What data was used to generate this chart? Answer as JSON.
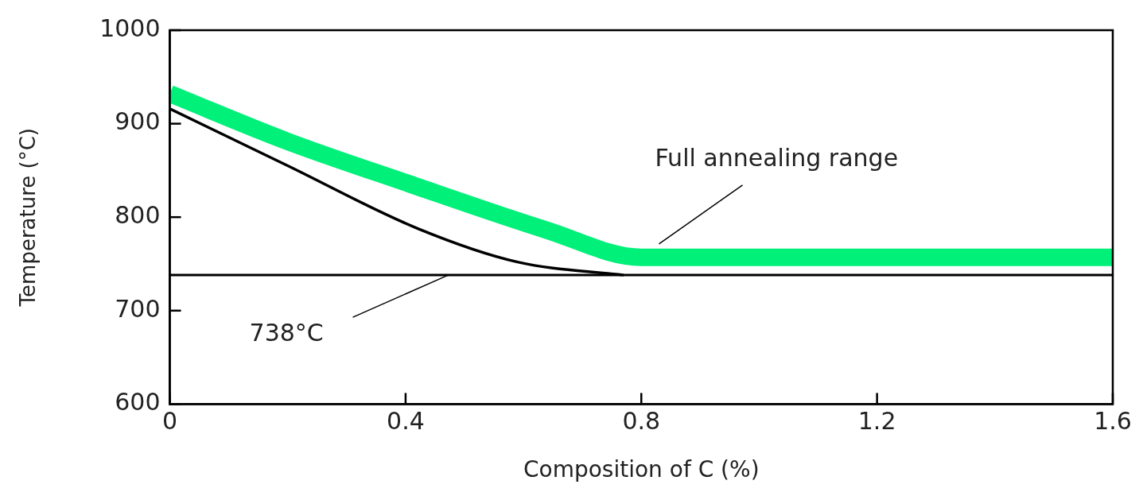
{
  "chart_data": {
    "type": "line",
    "xlabel": "Composition of C (%)",
    "ylabel": "Temperature (°C)",
    "xlim": [
      0,
      1.6
    ],
    "xticks": [
      0,
      0.4,
      0.8,
      1.2,
      1.6
    ],
    "ylim": [
      600,
      1000
    ],
    "yticks": [
      600,
      700,
      800,
      900,
      1000
    ],
    "grid": false,
    "legend": false,
    "marker": "none",
    "line_style": "solid",
    "series": [
      {
        "color": "#00f07a",
        "x": [
          0,
          0.2,
          0.4,
          0.64,
          0.8,
          1.6
        ],
        "values": [
          932,
          881,
          837,
          786,
          757,
          757
        ]
      },
      {
        "color": "#000000",
        "x": [
          0,
          0.2,
          0.42,
          0.59,
          0.77
        ],
        "values": [
          916,
          855,
          788,
          752,
          738
        ]
      }
    ],
    "ref_lines": [
      {
        "axis": "y",
        "value": 738,
        "label": "738°C",
        "color": "#000000"
      }
    ],
    "annotations": [
      {
        "text": "Full annealing range",
        "x": 0.83,
        "y": 768
      }
    ]
  }
}
